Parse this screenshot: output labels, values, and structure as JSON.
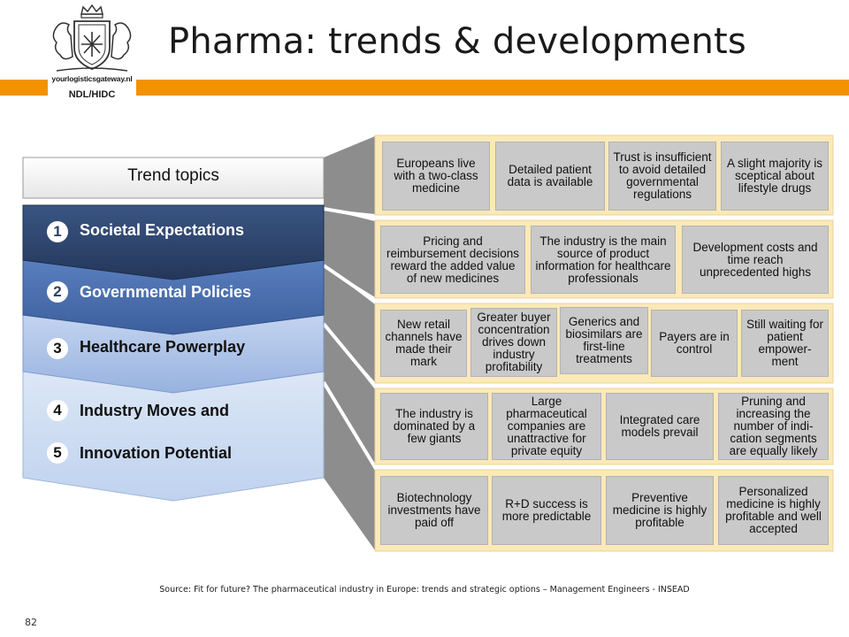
{
  "header": {
    "title": "Pharma: trends & developments",
    "logo_url_text": "yourlogisticsgateway.nl",
    "logo_tag": "NDL/HIDC"
  },
  "diagram": {
    "header_label": "Trend topics",
    "topics": [
      {
        "num": "1",
        "label": "Societal Expectations"
      },
      {
        "num": "2",
        "label": "Governmental Policies"
      },
      {
        "num": "3",
        "label": "Healthcare Powerplay"
      },
      {
        "num": "4",
        "label": "Industry Moves and"
      },
      {
        "num": "5",
        "label": "Innovation Potential"
      }
    ],
    "rows": [
      [
        "Europeans live with a two-class medicine",
        "Detailed patient data is available",
        "Trust is insufficient to avoid detailed governmental regulations",
        "A slight majority is sceptical about lifestyle drugs"
      ],
      [
        "Pricing and reimbursement decisions reward the added value of new medicines",
        "The industry is the main source of product information for healthcare professionals",
        "Development costs and time reach unprecedented highs"
      ],
      [
        "New retail channels have made their mark",
        "Greater buyer concentration drives down industry profitability",
        "Generics and biosimilars are first-line treatments",
        "Payers are in control",
        "Still waiting for patient empower-ment"
      ],
      [
        "The industry is dominated by a few giants",
        "Large pharmaceutical companies are unattractive for private equity",
        "Integrated care models prevail",
        "Pruning and increasing the number of indi-cation segments are equally likely"
      ],
      [
        "Biotechnology investments have paid off",
        "R+D success is more predictable",
        "Preventive medicine is highly profitable",
        "Personalized medicine is highly profitable and well accepted"
      ]
    ]
  },
  "footer": {
    "source": "Source: Fit for future? The pharmaceutical industry in Europe: trends and strategic options – Management Engineers - INSEAD",
    "page_number": "82"
  },
  "colors": {
    "orange": "#f39200",
    "navy": "#2b4063",
    "mid_blue": "#4467a5",
    "light_blue": "#a8bfe6",
    "pale_blue": "#c9d9f0",
    "cream": "#fbe9b7",
    "cell_gray": "#c9c9c9"
  }
}
